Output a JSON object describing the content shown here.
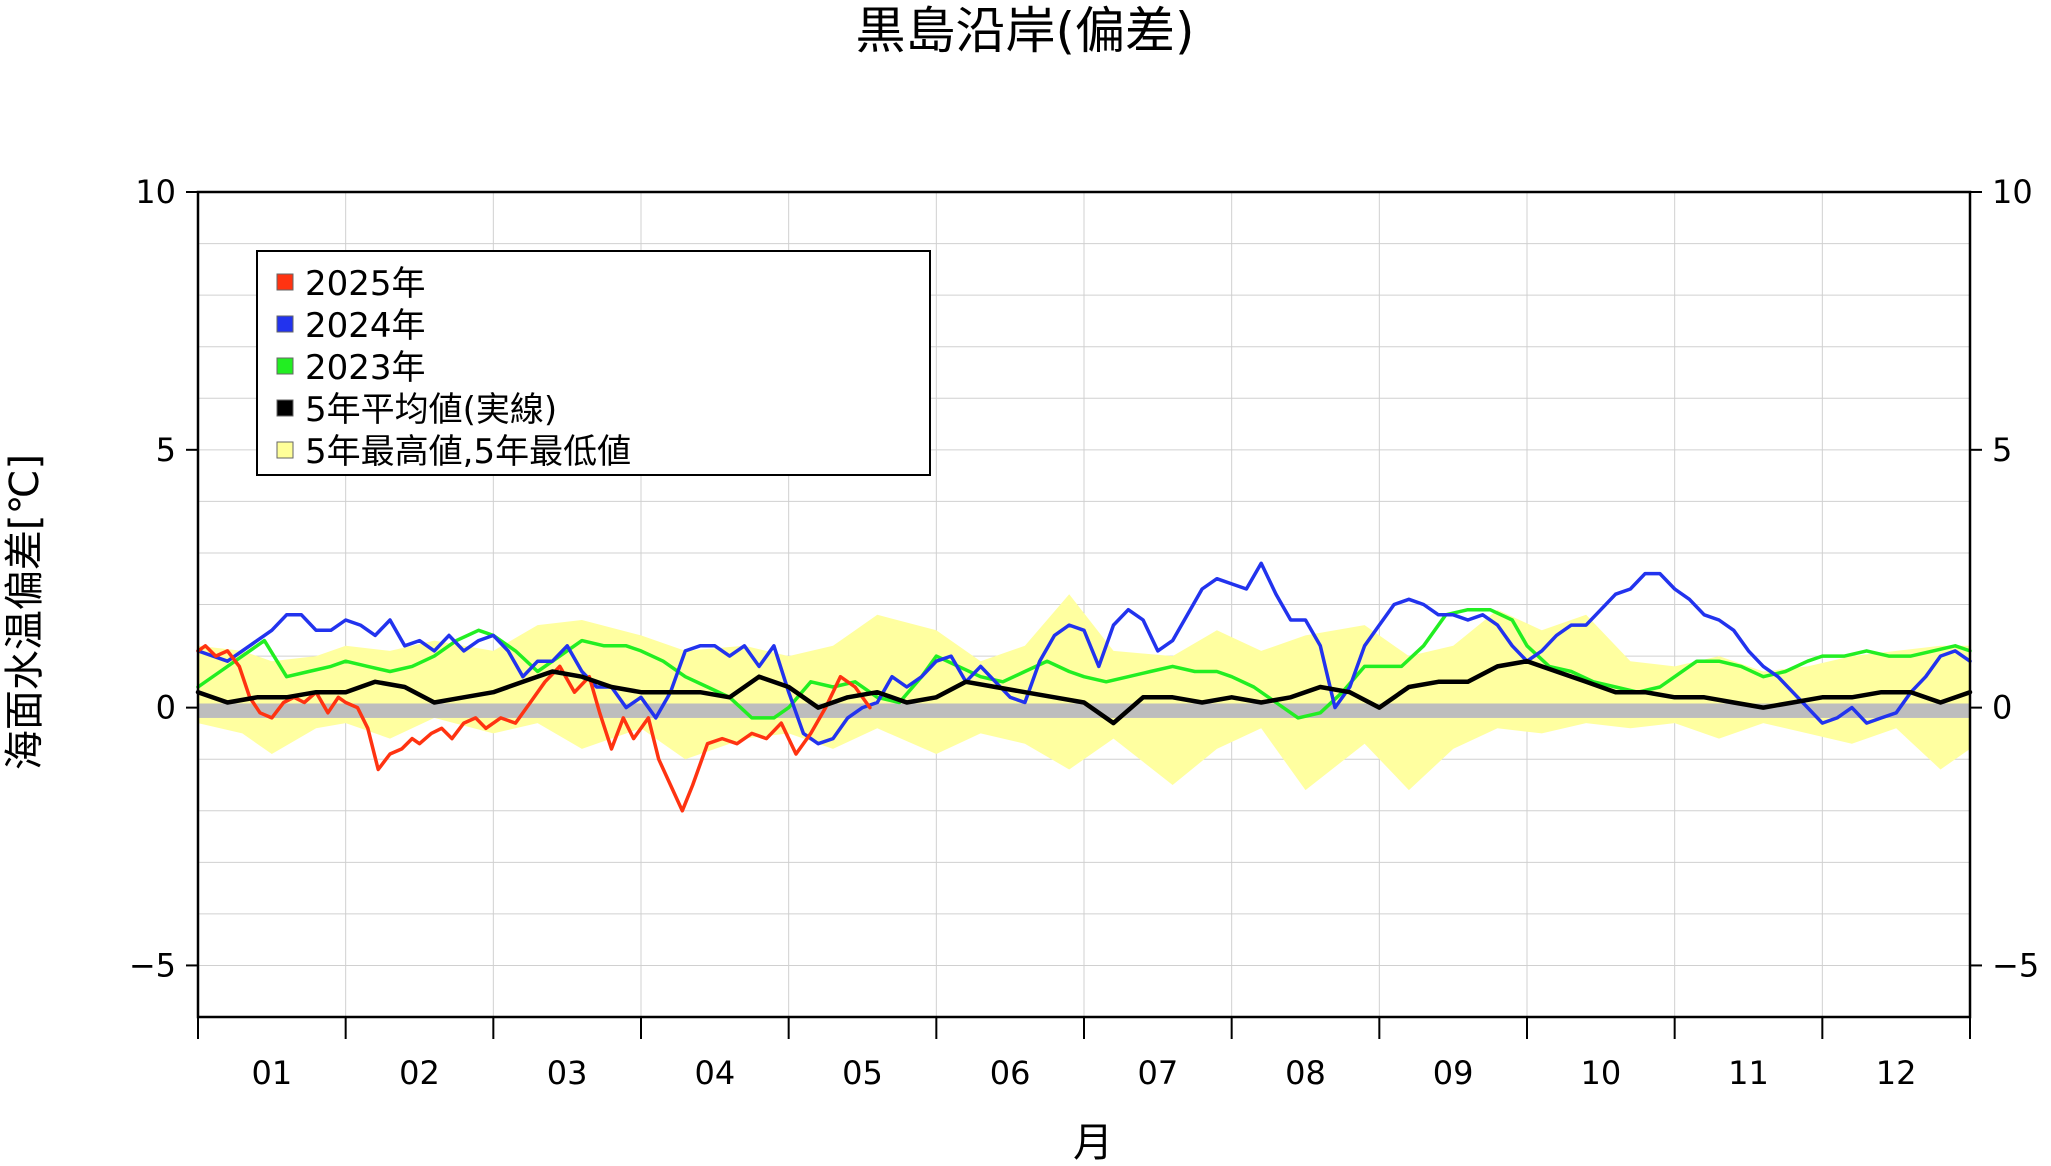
{
  "chart_data": {
    "type": "line",
    "title": "黒島沿岸(偏差)",
    "xlabel": "月",
    "ylabel": "海面水温偏差[℃]",
    "ylim": [
      -6,
      10
    ],
    "xlim": [
      0,
      12
    ],
    "yticks": [
      -5,
      0,
      5,
      10
    ],
    "ytick_labels": [
      "−5",
      "0",
      "5",
      "10"
    ],
    "x_month_labels": [
      "01",
      "02",
      "03",
      "04",
      "05",
      "06",
      "07",
      "08",
      "09",
      "10",
      "11",
      "12"
    ],
    "grid": true,
    "legend_position": "top-left",
    "legend": [
      {
        "label": "2025年",
        "color": "#ff3311"
      },
      {
        "label": "2024年",
        "color": "#2233ee"
      },
      {
        "label": "2023年",
        "color": "#22ee22"
      },
      {
        "label": "5年平均値(実線)",
        "color": "#000000"
      },
      {
        "label": "5年最高値,5年最低値",
        "color": "#ffff99"
      }
    ],
    "band": {
      "name": "5年最高値,5年最低値",
      "color": "#ffffa0",
      "x": [
        0.0,
        0.3,
        0.5,
        0.8,
        1.0,
        1.3,
        1.6,
        2.0,
        2.3,
        2.6,
        3.0,
        3.3,
        3.7,
        4.0,
        4.3,
        4.6,
        5.0,
        5.3,
        5.6,
        5.9,
        6.2,
        6.6,
        6.9,
        7.2,
        7.5,
        7.9,
        8.2,
        8.5,
        8.8,
        9.1,
        9.4,
        9.7,
        10.0,
        10.3,
        10.6,
        10.9,
        11.2,
        11.5,
        11.8,
        12.0
      ],
      "high": [
        1.2,
        1.1,
        0.9,
        1.0,
        1.2,
        1.1,
        1.3,
        1.1,
        1.6,
        1.7,
        1.4,
        1.1,
        1.2,
        1.0,
        1.2,
        1.8,
        1.5,
        0.9,
        1.2,
        2.2,
        1.1,
        1.0,
        1.5,
        1.1,
        1.4,
        1.6,
        1.0,
        1.2,
        1.9,
        1.5,
        1.8,
        0.9,
        0.8,
        1.0,
        0.7,
        0.8,
        1.0,
        1.1,
        1.2,
        1.2
      ],
      "low": [
        -0.3,
        -0.5,
        -0.9,
        -0.4,
        -0.3,
        -0.6,
        -0.2,
        -0.5,
        -0.3,
        -0.8,
        -0.4,
        -1.0,
        -0.6,
        -0.5,
        -0.8,
        -0.4,
        -0.9,
        -0.5,
        -0.7,
        -1.2,
        -0.6,
        -1.5,
        -0.8,
        -0.4,
        -1.6,
        -0.7,
        -1.6,
        -0.8,
        -0.4,
        -0.5,
        -0.3,
        -0.4,
        -0.3,
        -0.6,
        -0.3,
        -0.5,
        -0.7,
        -0.4,
        -1.2,
        -0.8
      ]
    },
    "series": [
      {
        "name": "2025年",
        "color": "#ff3311",
        "segments": [
          {
            "x": [
              0.0,
              0.05,
              0.12,
              0.2,
              0.28,
              0.35,
              0.42,
              0.5,
              0.58,
              0.65,
              0.72,
              0.8,
              0.88,
              0.95,
              1.0,
              1.08,
              1.15,
              1.22,
              1.3,
              1.38,
              1.45,
              1.5,
              1.58,
              1.65,
              1.72,
              1.8,
              1.88,
              1.95
            ],
            "y": [
              1.1,
              1.2,
              1.0,
              1.1,
              0.8,
              0.2,
              -0.1,
              -0.2,
              0.1,
              0.2,
              0.1,
              0.3,
              -0.1,
              0.2,
              0.1,
              0.0,
              -0.4,
              -1.2,
              -0.9,
              -0.8,
              -0.6,
              -0.7,
              -0.5,
              -0.4,
              -0.6,
              -0.3,
              -0.2,
              -0.4
            ]
          },
          {
            "x": [
              1.95,
              2.05,
              2.15,
              2.25,
              2.35,
              2.45,
              2.55,
              2.65,
              2.72,
              2.8,
              2.88,
              2.95,
              3.05,
              3.12,
              3.2,
              3.28,
              3.35,
              3.45,
              3.55,
              3.65,
              3.75,
              3.85,
              3.95,
              4.05,
              4.15,
              4.25,
              4.35,
              4.45,
              4.55
            ],
            "y": [
              -0.4,
              -0.2,
              -0.3,
              0.1,
              0.5,
              0.8,
              0.3,
              0.6,
              -0.1,
              -0.8,
              -0.2,
              -0.6,
              -0.2,
              -1.0,
              -1.5,
              -2.0,
              -1.5,
              -0.7,
              -0.6,
              -0.7,
              -0.5,
              -0.6,
              -0.3,
              -0.9,
              -0.5,
              0.0,
              0.6,
              0.4,
              0.0
            ]
          }
        ]
      },
      {
        "name": "2024年",
        "color": "#2233ee",
        "segments": [
          {
            "x": [
              0.0,
              0.2,
              0.4,
              0.5,
              0.6,
              0.7,
              0.8,
              0.9,
              1.0,
              1.1,
              1.2,
              1.3,
              1.4,
              1.5,
              1.6,
              1.7,
              1.8,
              1.9,
              2.0,
              2.1,
              2.2,
              2.3,
              2.4,
              2.5,
              2.6,
              2.7,
              2.8,
              2.9,
              3.0,
              3.1,
              3.2,
              3.3,
              3.4,
              3.5,
              3.6,
              3.7,
              3.8,
              3.9,
              4.0,
              4.1,
              4.2,
              4.3,
              4.4,
              4.5,
              4.6,
              4.7,
              4.8,
              4.9,
              5.0,
              5.1,
              5.2,
              5.3,
              5.4,
              5.5,
              5.6,
              5.7,
              5.8,
              5.9,
              6.0,
              6.1,
              6.2,
              6.3,
              6.4,
              6.5,
              6.6,
              6.7,
              6.8,
              6.9,
              7.0,
              7.1,
              7.2,
              7.3,
              7.4,
              7.5,
              7.6,
              7.7,
              7.8,
              7.9,
              8.0,
              8.1,
              8.2,
              8.3,
              8.4,
              8.5,
              8.6,
              8.7,
              8.8,
              8.9,
              9.0,
              9.1,
              9.2,
              9.3,
              9.4,
              9.5,
              9.6,
              9.7,
              9.8,
              9.9,
              10.0,
              10.1,
              10.2,
              10.3,
              10.4,
              10.5,
              10.6,
              10.7,
              10.8,
              10.9,
              11.0,
              11.1,
              11.2,
              11.3,
              11.4,
              11.5,
              11.6,
              11.7,
              11.8,
              11.9,
              12.0
            ],
            "y": [
              1.1,
              0.9,
              1.3,
              1.5,
              1.8,
              1.8,
              1.5,
              1.5,
              1.7,
              1.6,
              1.4,
              1.7,
              1.2,
              1.3,
              1.1,
              1.4,
              1.1,
              1.3,
              1.4,
              1.1,
              0.6,
              0.9,
              0.9,
              1.2,
              0.7,
              0.4,
              0.4,
              0.0,
              0.2,
              -0.2,
              0.3,
              1.1,
              1.2,
              1.2,
              1.0,
              1.2,
              0.8,
              1.2,
              0.3,
              -0.5,
              -0.7,
              -0.6,
              -0.2,
              0.0,
              0.1,
              0.6,
              0.4,
              0.6,
              0.9,
              1.0,
              0.5,
              0.8,
              0.5,
              0.2,
              0.1,
              0.9,
              1.4,
              1.6,
              1.5,
              0.8,
              1.6,
              1.9,
              1.7,
              1.1,
              1.3,
              1.8,
              2.3,
              2.5,
              2.4,
              2.3,
              2.8,
              2.2,
              1.7,
              1.7,
              1.2,
              0.0,
              0.4,
              1.2,
              1.6,
              2.0,
              2.1,
              2.0,
              1.8,
              1.8,
              1.7,
              1.8,
              1.6,
              1.2,
              0.9,
              1.1,
              1.4,
              1.6,
              1.6,
              1.9,
              2.2,
              2.3,
              2.6,
              2.6,
              2.3,
              2.1,
              1.8,
              1.7,
              1.5,
              1.1,
              0.8,
              0.6,
              0.3,
              0.0,
              -0.3,
              -0.2,
              0.0,
              -0.3,
              -0.2,
              -0.1,
              0.3,
              0.6,
              1.0,
              1.1,
              0.9
            ]
          }
        ]
      },
      {
        "name": "2023年",
        "color": "#22ee22",
        "segments": [
          {
            "x": [
              0.0,
              0.15,
              0.3,
              0.45,
              0.6,
              0.75,
              0.9,
              1.0,
              1.15,
              1.3,
              1.45,
              1.6,
              1.75,
              1.9,
              2.0,
              2.15,
              2.3,
              2.45,
              2.6,
              2.75,
              2.9,
              3.0,
              3.15,
              3.3,
              3.45,
              3.6,
              3.75,
              3.9,
              4.0,
              4.15,
              4.3,
              4.45,
              4.6,
              4.75,
              4.9,
              5.0,
              5.15,
              5.3,
              5.45,
              5.6,
              5.75,
              5.9,
              6.0,
              6.15,
              6.3,
              6.45,
              6.6,
              6.75,
              6.9,
              7.0,
              7.15,
              7.3,
              7.45,
              7.6,
              7.75,
              7.9,
              8.0,
              8.15,
              8.3,
              8.45,
              8.6,
              8.75,
              8.9,
              9.0,
              9.15,
              9.3,
              9.45,
              9.6,
              9.75,
              9.9,
              10.0,
              10.15,
              10.3,
              10.45,
              10.6,
              10.75,
              10.9,
              11.0,
              11.15,
              11.3,
              11.45,
              11.6,
              11.75,
              11.9,
              12.0
            ],
            "y": [
              0.4,
              0.7,
              1.0,
              1.3,
              0.6,
              0.7,
              0.8,
              0.9,
              0.8,
              0.7,
              0.8,
              1.0,
              1.3,
              1.5,
              1.4,
              1.1,
              0.7,
              1.0,
              1.3,
              1.2,
              1.2,
              1.1,
              0.9,
              0.6,
              0.4,
              0.2,
              -0.2,
              -0.2,
              0.0,
              0.5,
              0.4,
              0.5,
              0.2,
              0.1,
              0.6,
              1.0,
              0.8,
              0.6,
              0.5,
              0.7,
              0.9,
              0.7,
              0.6,
              0.5,
              0.6,
              0.7,
              0.8,
              0.7,
              0.7,
              0.6,
              0.4,
              0.1,
              -0.2,
              -0.1,
              0.3,
              0.8,
              0.8,
              0.8,
              1.2,
              1.8,
              1.9,
              1.9,
              1.7,
              1.2,
              0.8,
              0.7,
              0.5,
              0.4,
              0.3,
              0.4,
              0.6,
              0.9,
              0.9,
              0.8,
              0.6,
              0.7,
              0.9,
              1.0,
              1.0,
              1.1,
              1.0,
              1.0,
              1.1,
              1.2,
              1.1
            ]
          }
        ]
      },
      {
        "name": "5年平均値(実線)",
        "color": "#000000",
        "segments": [
          {
            "x": [
              0.0,
              0.2,
              0.4,
              0.6,
              0.8,
              1.0,
              1.2,
              1.4,
              1.6,
              1.8,
              2.0,
              2.2,
              2.4,
              2.6,
              2.8,
              3.0,
              3.2,
              3.4,
              3.6,
              3.8,
              4.0,
              4.2,
              4.4,
              4.6,
              4.8,
              5.0,
              5.2,
              5.4,
              5.6,
              5.8,
              6.0,
              6.2,
              6.4,
              6.6,
              6.8,
              7.0,
              7.2,
              7.4,
              7.6,
              7.8,
              8.0,
              8.2,
              8.4,
              8.6,
              8.8,
              9.0,
              9.2,
              9.4,
              9.6,
              9.8,
              10.0,
              10.2,
              10.4,
              10.6,
              10.8,
              11.0,
              11.2,
              11.4,
              11.6,
              11.8,
              12.0
            ],
            "y": [
              0.3,
              0.1,
              0.2,
              0.2,
              0.3,
              0.3,
              0.5,
              0.4,
              0.1,
              0.2,
              0.3,
              0.5,
              0.7,
              0.6,
              0.4,
              0.3,
              0.3,
              0.3,
              0.2,
              0.6,
              0.4,
              0.0,
              0.2,
              0.3,
              0.1,
              0.2,
              0.5,
              0.4,
              0.3,
              0.2,
              0.1,
              -0.3,
              0.2,
              0.2,
              0.1,
              0.2,
              0.1,
              0.2,
              0.4,
              0.3,
              0.0,
              0.4,
              0.5,
              0.5,
              0.8,
              0.9,
              0.7,
              0.5,
              0.3,
              0.3,
              0.2,
              0.2,
              0.1,
              0.0,
              0.1,
              0.2,
              0.2,
              0.3,
              0.3,
              0.1,
              0.3
            ]
          }
        ]
      }
    ]
  }
}
